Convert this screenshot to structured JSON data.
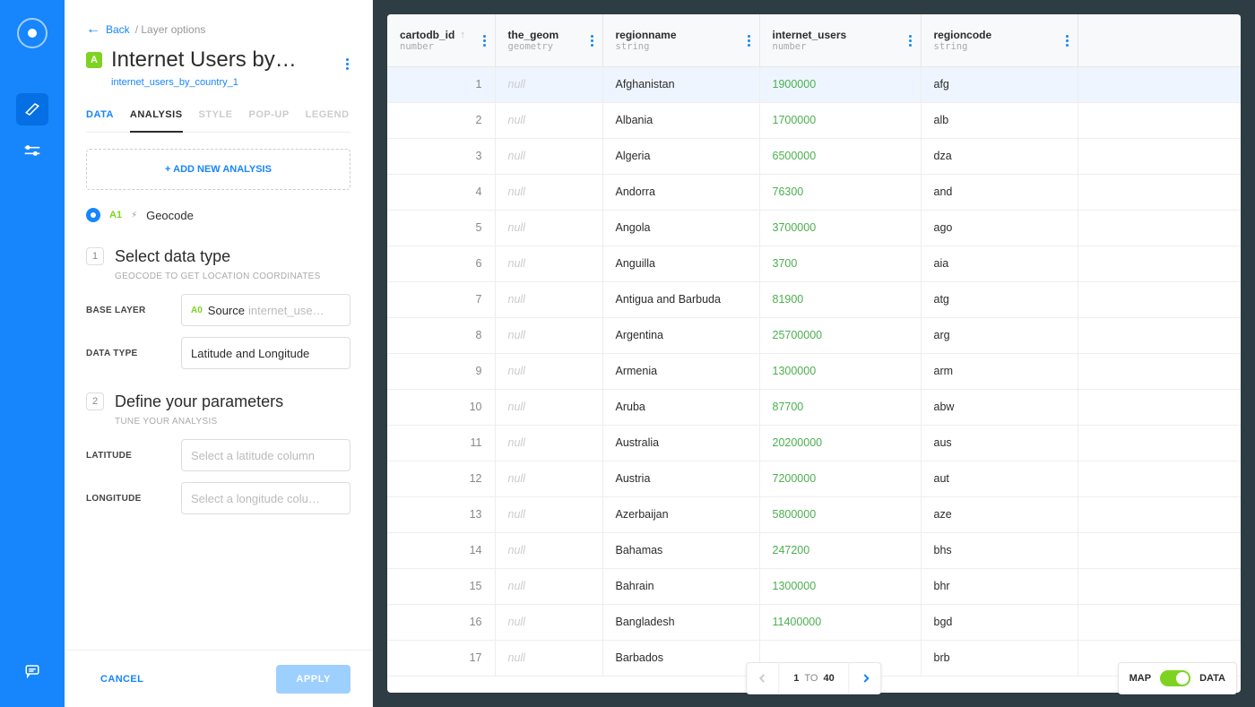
{
  "colors": {
    "accent": "#1785FB",
    "green": "#7ED321",
    "numGreen": "#4caf50"
  },
  "header": {
    "back": "Back",
    "crumb": "/ Layer options",
    "title": "Internet Users by…",
    "sublink": "internet_users_by_country_1",
    "badge": "A"
  },
  "tabs": [
    "DATA",
    "ANALYSIS",
    "STYLE",
    "POP-UP",
    "LEGEND"
  ],
  "addAnalysis": "+ ADD NEW ANALYSIS",
  "node": {
    "id": "A1",
    "label": "Geocode"
  },
  "section1": {
    "num": "1",
    "title": "Select data type",
    "sub": "GEOCODE TO GET LOCATION COORDINATES",
    "baseLayerLabel": "BASE LAYER",
    "baseLayerTag": "A0",
    "baseLayerSource": "Source",
    "baseLayerSourceSub": "internet_use…",
    "dataTypeLabel": "DATA TYPE",
    "dataTypeValue": "Latitude and Longitude"
  },
  "section2": {
    "num": "2",
    "title": "Define your parameters",
    "sub": "TUNE YOUR ANALYSIS",
    "latLabel": "LATITUDE",
    "latPlaceholder": "Select a latitude column",
    "lonLabel": "LONGITUDE",
    "lonPlaceholder": "Select a longitude colu…"
  },
  "footer": {
    "cancel": "CANCEL",
    "apply": "APPLY"
  },
  "table": {
    "columns": [
      {
        "name": "cartodb_id",
        "type": "number",
        "sorted": true
      },
      {
        "name": "the_geom",
        "type": "geometry"
      },
      {
        "name": "regionname",
        "type": "string"
      },
      {
        "name": "internet_users",
        "type": "number"
      },
      {
        "name": "regioncode",
        "type": "string"
      }
    ],
    "null": "null",
    "rows": [
      {
        "id": 1,
        "region": "Afghanistan",
        "users": "1900000",
        "code": "afg"
      },
      {
        "id": 2,
        "region": "Albania",
        "users": "1700000",
        "code": "alb"
      },
      {
        "id": 3,
        "region": "Algeria",
        "users": "6500000",
        "code": "dza"
      },
      {
        "id": 4,
        "region": "Andorra",
        "users": "76300",
        "code": "and"
      },
      {
        "id": 5,
        "region": "Angola",
        "users": "3700000",
        "code": "ago"
      },
      {
        "id": 6,
        "region": "Anguilla",
        "users": "3700",
        "code": "aia"
      },
      {
        "id": 7,
        "region": "Antigua and Barbuda",
        "users": "81900",
        "code": "atg"
      },
      {
        "id": 8,
        "region": "Argentina",
        "users": "25700000",
        "code": "arg"
      },
      {
        "id": 9,
        "region": "Armenia",
        "users": "1300000",
        "code": "arm"
      },
      {
        "id": 10,
        "region": "Aruba",
        "users": "87700",
        "code": "abw"
      },
      {
        "id": 11,
        "region": "Australia",
        "users": "20200000",
        "code": "aus"
      },
      {
        "id": 12,
        "region": "Austria",
        "users": "7200000",
        "code": "aut"
      },
      {
        "id": 13,
        "region": "Azerbaijan",
        "users": "5800000",
        "code": "aze"
      },
      {
        "id": 14,
        "region": "Bahamas",
        "users": "247200",
        "code": "bhs"
      },
      {
        "id": 15,
        "region": "Bahrain",
        "users": "1300000",
        "code": "bhr"
      },
      {
        "id": 16,
        "region": "Bangladesh",
        "users": "11400000",
        "code": "bgd"
      },
      {
        "id": 17,
        "region": "Barbados",
        "users": "",
        "code": "brb"
      }
    ]
  },
  "pager": {
    "from": "1",
    "to_word": "TO",
    "to": "40"
  },
  "toggle": {
    "left": "MAP",
    "right": "DATA"
  }
}
